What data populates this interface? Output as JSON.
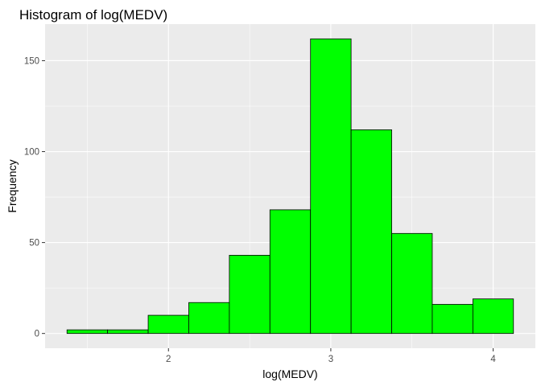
{
  "chart_data": {
    "type": "bar",
    "title": "Histogram of log(MEDV)",
    "xlabel": "log(MEDV)",
    "ylabel": "Frequency",
    "bins": [
      {
        "start": 1.375,
        "end": 1.625,
        "count": 2
      },
      {
        "start": 1.625,
        "end": 1.875,
        "count": 2
      },
      {
        "start": 1.875,
        "end": 2.125,
        "count": 10
      },
      {
        "start": 2.125,
        "end": 2.375,
        "count": 17
      },
      {
        "start": 2.375,
        "end": 2.625,
        "count": 43
      },
      {
        "start": 2.625,
        "end": 2.875,
        "count": 68
      },
      {
        "start": 2.875,
        "end": 3.125,
        "count": 162
      },
      {
        "start": 3.125,
        "end": 3.375,
        "count": 112
      },
      {
        "start": 3.375,
        "end": 3.625,
        "count": 55
      },
      {
        "start": 3.625,
        "end": 3.875,
        "count": 16
      },
      {
        "start": 3.875,
        "end": 4.125,
        "count": 19
      }
    ],
    "xlim": [
      1.24,
      4.26
    ],
    "ylim": [
      -8.1,
      170.1
    ],
    "x_ticks": [
      2,
      3,
      4
    ],
    "x_minor": [
      1.5,
      2.5,
      3.5
    ],
    "y_ticks": [
      0,
      50,
      100,
      150
    ],
    "y_minor": [
      25,
      75,
      125
    ],
    "grid": true,
    "legend": "none",
    "colors": {
      "bar_fill": "#00ff00",
      "bar_stroke": "#000000",
      "panel_bg": "#ebebeb",
      "grid": "#ffffff",
      "tick_text": "#4d4d4d"
    }
  }
}
